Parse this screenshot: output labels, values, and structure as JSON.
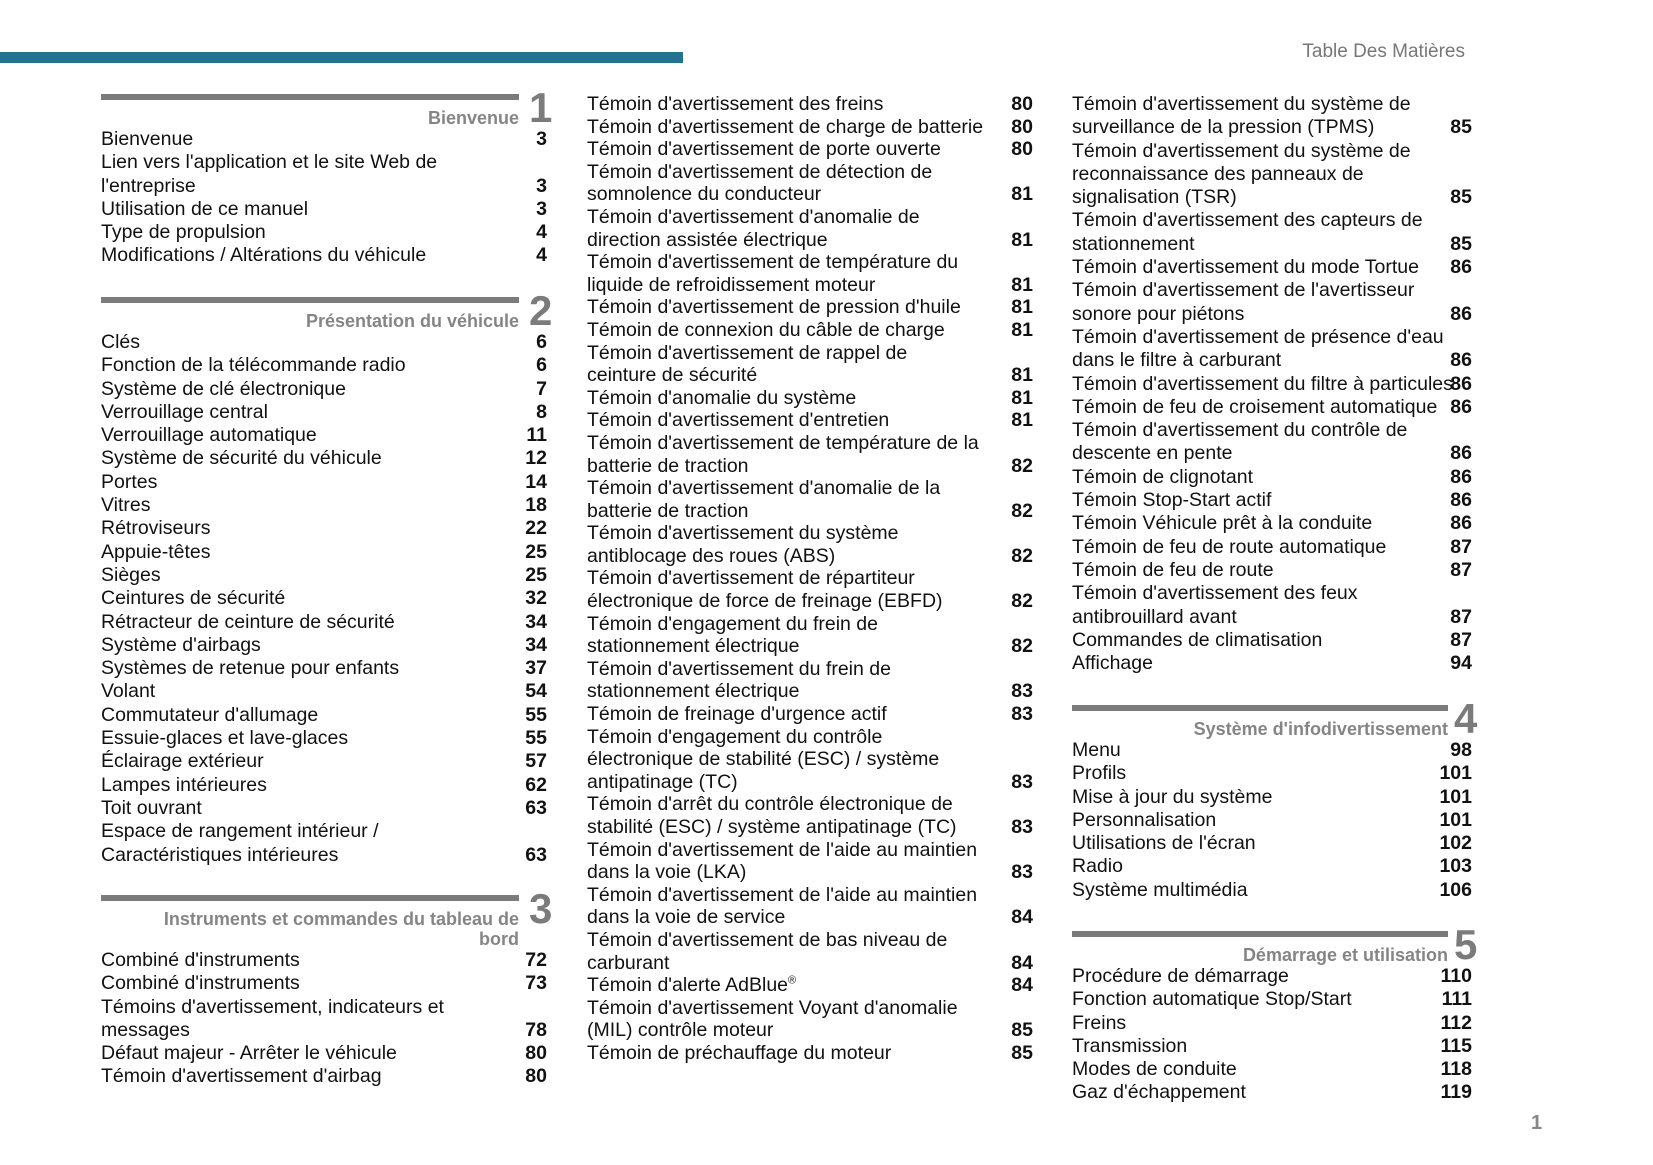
{
  "header": {
    "title": "Table Des Matières",
    "accent_color": "#23728f"
  },
  "page_number": "1",
  "columns": [
    {
      "sections": [
        {
          "number": "1",
          "heading": [
            "Bienvenue"
          ],
          "entries": [
            {
              "lines": [
                "Bienvenue"
              ],
              "page": "3"
            },
            {
              "lines": [
                "Lien vers l'application et le site Web de",
                "l'entreprise"
              ],
              "page": "3"
            },
            {
              "lines": [
                "Utilisation de ce manuel"
              ],
              "page": "3"
            },
            {
              "lines": [
                "Type de propulsion"
              ],
              "page": "4"
            },
            {
              "lines": [
                "Modifications / Altérations du véhicule"
              ],
              "page": "4"
            }
          ]
        },
        {
          "number": "2",
          "heading": [
            "Présentation du véhicule"
          ],
          "entries": [
            {
              "lines": [
                "Clés"
              ],
              "page": "6"
            },
            {
              "lines": [
                "Fonction de la télécommande radio"
              ],
              "page": "6"
            },
            {
              "lines": [
                "Système de clé électronique"
              ],
              "page": "7"
            },
            {
              "lines": [
                "Verrouillage central"
              ],
              "page": "8"
            },
            {
              "lines": [
                "Verrouillage automatique"
              ],
              "page": "11"
            },
            {
              "lines": [
                "Système de sécurité du véhicule"
              ],
              "page": "12"
            },
            {
              "lines": [
                "Portes"
              ],
              "page": "14"
            },
            {
              "lines": [
                "Vitres"
              ],
              "page": "18"
            },
            {
              "lines": [
                "Rétroviseurs"
              ],
              "page": "22"
            },
            {
              "lines": [
                "Appuie-têtes"
              ],
              "page": "25"
            },
            {
              "lines": [
                "Sièges"
              ],
              "page": "25"
            },
            {
              "lines": [
                "Ceintures de sécurité"
              ],
              "page": "32"
            },
            {
              "lines": [
                "Rétracteur de ceinture de sécurité"
              ],
              "page": "34"
            },
            {
              "lines": [
                "Système d'airbags"
              ],
              "page": "34"
            },
            {
              "lines": [
                "Systèmes de retenue pour enfants"
              ],
              "page": "37"
            },
            {
              "lines": [
                "Volant"
              ],
              "page": "54"
            },
            {
              "lines": [
                "Commutateur d'allumage"
              ],
              "page": "55"
            },
            {
              "lines": [
                "Essuie-glaces et lave-glaces"
              ],
              "page": "55"
            },
            {
              "lines": [
                "Éclairage extérieur"
              ],
              "page": "57"
            },
            {
              "lines": [
                "Lampes intérieures"
              ],
              "page": "62"
            },
            {
              "lines": [
                "Toit ouvrant"
              ],
              "page": "63"
            },
            {
              "lines": [
                "Espace de rangement intérieur /",
                "Caractéristiques intérieures"
              ],
              "page": "63"
            }
          ]
        },
        {
          "number": "3",
          "heading": [
            "Instruments et commandes du tableau de",
            "bord"
          ],
          "entries": [
            {
              "lines": [
                "Combiné d'instruments"
              ],
              "page": "72"
            },
            {
              "lines": [
                "Combiné d'instruments"
              ],
              "page": "73"
            },
            {
              "lines": [
                "Témoins d'avertissement, indicateurs et",
                "messages"
              ],
              "page": "78"
            },
            {
              "lines": [
                "Défaut majeur - Arrêter le véhicule"
              ],
              "page": "80"
            },
            {
              "lines": [
                "Témoin d'avertissement d'airbag"
              ],
              "page": "80"
            }
          ]
        }
      ]
    },
    {
      "sections": [
        {
          "number": "",
          "heading": [],
          "entries": [
            {
              "lines": [
                "Témoin d'avertissement des freins"
              ],
              "page": "80"
            },
            {
              "lines": [
                "Témoin d'avertissement de charge de batterie"
              ],
              "page": "80"
            },
            {
              "lines": [
                "Témoin d'avertissement de porte ouverte"
              ],
              "page": "80"
            },
            {
              "lines": [
                "Témoin d'avertissement de détection de",
                "somnolence du conducteur"
              ],
              "page": "81"
            },
            {
              "lines": [
                "Témoin d'avertissement d'anomalie de",
                "direction assistée électrique"
              ],
              "page": "81"
            },
            {
              "lines": [
                "Témoin d'avertissement de température du",
                "liquide de refroidissement moteur"
              ],
              "page": "81"
            },
            {
              "lines": [
                "Témoin d'avertissement de pression d'huile"
              ],
              "page": "81"
            },
            {
              "lines": [
                "Témoin de connexion du câble de charge"
              ],
              "page": "81"
            },
            {
              "lines": [
                "Témoin d'avertissement de rappel de",
                "ceinture de sécurité"
              ],
              "page": "81"
            },
            {
              "lines": [
                "Témoin d'anomalie du système"
              ],
              "page": "81"
            },
            {
              "lines": [
                "Témoin d'avertissement d'entretien"
              ],
              "page": "81"
            },
            {
              "lines": [
                "Témoin d'avertissement de température de la",
                "batterie de traction"
              ],
              "page": "82"
            },
            {
              "lines": [
                "Témoin d'avertissement d'anomalie de la",
                "batterie de traction"
              ],
              "page": "82"
            },
            {
              "lines": [
                "Témoin d'avertissement du système",
                "antiblocage des roues (ABS)"
              ],
              "page": "82"
            },
            {
              "lines": [
                "Témoin d'avertissement de répartiteur",
                "électronique de force de freinage (EBFD)"
              ],
              "page": "82"
            },
            {
              "lines": [
                "Témoin d'engagement du frein de",
                "stationnement électrique"
              ],
              "page": "82"
            },
            {
              "lines": [
                "Témoin d'avertissement du frein de",
                "stationnement électrique"
              ],
              "page": "83"
            },
            {
              "lines": [
                "Témoin de freinage d'urgence actif"
              ],
              "page": "83"
            },
            {
              "lines": [
                "Témoin d'engagement du contrôle",
                "électronique de stabilité (ESC) / système",
                "antipatinage (TC)"
              ],
              "page": "83"
            },
            {
              "lines": [
                "Témoin d'arrêt du contrôle électronique de",
                "stabilité (ESC) / système antipatinage (TC)"
              ],
              "page": "83"
            },
            {
              "lines": [
                "Témoin d'avertissement de l'aide au maintien",
                "dans la voie (LKA)"
              ],
              "page": "83"
            },
            {
              "lines": [
                "Témoin d'avertissement de l'aide au maintien",
                "dans la voie de service"
              ],
              "page": "84"
            },
            {
              "lines": [
                "Témoin d'avertissement de bas niveau de",
                "carburant"
              ],
              "page": "84"
            },
            {
              "lines": [
                "Témoin d'alerte AdBlue"
              ],
              "sup": "®",
              "page": "84"
            },
            {
              "lines": [
                "Témoin d'avertissement Voyant d'anomalie",
                "(MIL) contrôle moteur"
              ],
              "page": "85"
            },
            {
              "lines": [
                "Témoin de préchauffage du moteur"
              ],
              "page": "85"
            }
          ]
        }
      ]
    },
    {
      "sections": [
        {
          "number": "",
          "heading": [],
          "entries": [
            {
              "lines": [
                "Témoin d'avertissement du système de",
                "surveillance de la pression (TPMS)"
              ],
              "page": "85"
            },
            {
              "lines": [
                "Témoin d'avertissement du système de",
                "reconnaissance des panneaux de",
                "signalisation (TSR)"
              ],
              "page": "85"
            },
            {
              "lines": [
                "Témoin d'avertissement des capteurs de",
                "stationnement"
              ],
              "page": "85"
            },
            {
              "lines": [
                "Témoin d'avertissement du mode Tortue"
              ],
              "page": "86"
            },
            {
              "lines": [
                "Témoin d'avertissement de l'avertisseur",
                "sonore pour piétons"
              ],
              "page": "86"
            },
            {
              "lines": [
                "Témoin d'avertissement de présence d'eau",
                "dans le filtre à carburant"
              ],
              "page": "86"
            },
            {
              "lines": [
                "Témoin d'avertissement du filtre à particules"
              ],
              "page": "86"
            },
            {
              "lines": [
                "Témoin de feu de croisement automatique"
              ],
              "page": "86"
            },
            {
              "lines": [
                "Témoin d'avertissement du contrôle de",
                "descente en pente"
              ],
              "page": "86"
            },
            {
              "lines": [
                "Témoin de clignotant"
              ],
              "page": "86"
            },
            {
              "lines": [
                "Témoin Stop-Start actif"
              ],
              "page": "86"
            },
            {
              "lines": [
                "Témoin Véhicule prêt à la conduite"
              ],
              "page": "86"
            },
            {
              "lines": [
                "Témoin de feu de route automatique"
              ],
              "page": "87"
            },
            {
              "lines": [
                "Témoin de feu de route"
              ],
              "page": "87"
            },
            {
              "lines": [
                "Témoin d'avertissement des feux",
                "antibrouillard avant"
              ],
              "page": "87"
            },
            {
              "lines": [
                "Commandes de climatisation"
              ],
              "page": "87"
            },
            {
              "lines": [
                "Affichage"
              ],
              "page": "94"
            }
          ]
        },
        {
          "number": "4",
          "heading": [
            "Système d'infodivertissement"
          ],
          "entries": [
            {
              "lines": [
                "Menu"
              ],
              "page": "98"
            },
            {
              "lines": [
                "Profils"
              ],
              "page": "101"
            },
            {
              "lines": [
                "Mise à jour du système"
              ],
              "page": "101"
            },
            {
              "lines": [
                "Personnalisation"
              ],
              "page": "101"
            },
            {
              "lines": [
                "Utilisations de l'écran"
              ],
              "page": "102"
            },
            {
              "lines": [
                "Radio"
              ],
              "page": "103"
            },
            {
              "lines": [
                "Système multimédia"
              ],
              "page": "106"
            }
          ]
        },
        {
          "number": "5",
          "heading": [
            "Démarrage et utilisation"
          ],
          "entries": [
            {
              "lines": [
                "Procédure de démarrage"
              ],
              "page": "110"
            },
            {
              "lines": [
                "Fonction automatique Stop/Start"
              ],
              "page": "111"
            },
            {
              "lines": [
                "Freins"
              ],
              "page": "112"
            },
            {
              "lines": [
                "Transmission"
              ],
              "page": "115"
            },
            {
              "lines": [
                "Modes de conduite"
              ],
              "page": "118"
            },
            {
              "lines": [
                "Gaz d'échappement"
              ],
              "page": "119"
            }
          ]
        }
      ]
    }
  ]
}
